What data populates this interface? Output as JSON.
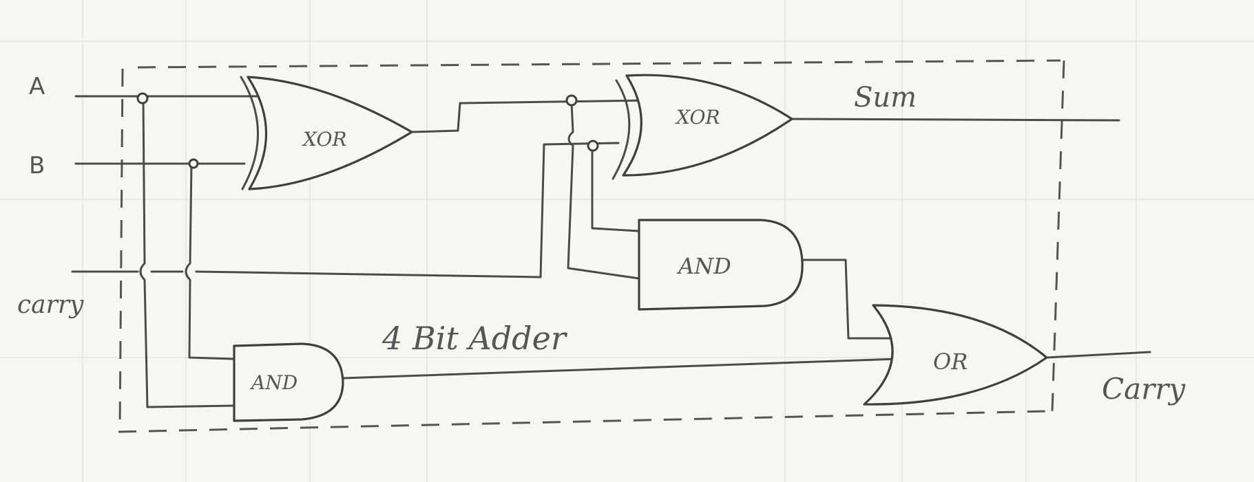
{
  "inputs": {
    "a": "A",
    "b": "B",
    "carry_in": "carry"
  },
  "outputs": {
    "sum": "Sum",
    "carry_out": "Carry"
  },
  "gates": {
    "xor1": "XOR",
    "xor2": "XOR",
    "and1": "AND",
    "and2": "AND",
    "or1": "OR"
  },
  "block_label": "4 Bit Adder",
  "colors": {
    "ink": "#4a4a4a",
    "paper": "#f6f6f3",
    "grid": "#e4e4df"
  }
}
